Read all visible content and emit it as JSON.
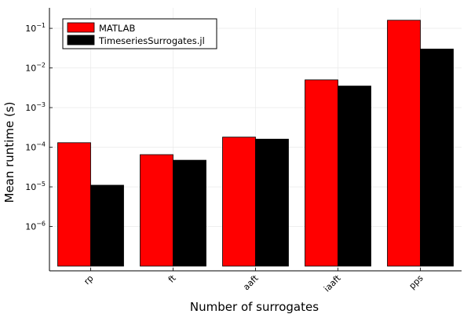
{
  "chart_data": {
    "type": "bar",
    "xlabel": "Number of surrogates",
    "ylabel": "Mean runtime (s)",
    "yscale": "log",
    "ylim": [
      1e-07,
      0.25
    ],
    "grid": true,
    "legend_position": "top-left",
    "categories": [
      "rp",
      "ft",
      "aaft",
      "iaaft",
      "pps"
    ],
    "y_ticks": [
      {
        "value": 1e-06,
        "base": "10",
        "exp": "−6"
      },
      {
        "value": 1e-05,
        "base": "10",
        "exp": "−5"
      },
      {
        "value": 0.0001,
        "base": "10",
        "exp": "−4"
      },
      {
        "value": 0.001,
        "base": "10",
        "exp": "−3"
      },
      {
        "value": 0.01,
        "base": "10",
        "exp": "−2"
      },
      {
        "value": 0.1,
        "base": "10",
        "exp": "−1"
      }
    ],
    "series": [
      {
        "name": "MATLAB",
        "color": "#ff0000",
        "values": [
          0.00013,
          6.5e-05,
          0.00018,
          0.005,
          0.16
        ]
      },
      {
        "name": "TimeseriesSurrogates.jl",
        "color": "#000000",
        "values": [
          1.1e-05,
          4.7e-05,
          0.00016,
          0.0035,
          0.03
        ]
      }
    ]
  }
}
